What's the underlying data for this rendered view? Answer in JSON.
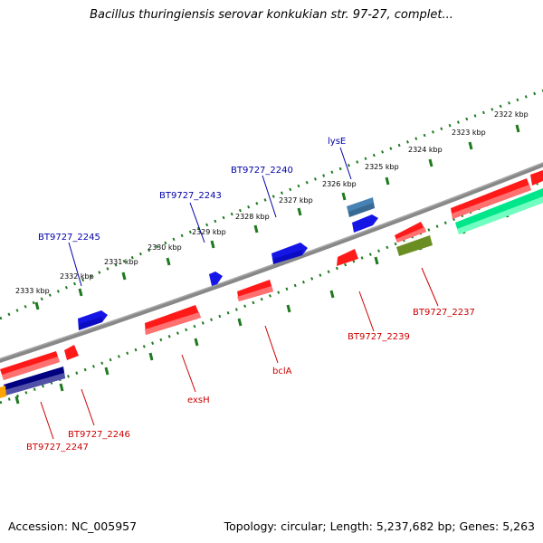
{
  "title": "Bacillus thuringiensis serovar konkukian str. 97-27, complet...",
  "footer": {
    "accession": "Accession: NC_005957",
    "summary": "Topology: circular; Length: 5,237,682 bp; Genes: 5,263"
  },
  "scale_ticks": [
    "2322 kbp",
    "2323 kbp",
    "2324 kbp",
    "2325 kbp",
    "2326 kbp",
    "2327 kbp",
    "2328 kbp",
    "2329 kbp",
    "2330 kbp",
    "2331 kbp",
    "2332 kbp",
    "2333 kbp"
  ],
  "gene_labels": {
    "lysE": "lysE",
    "bt2240": "BT9727_2240",
    "bt2243": "BT9727_2243",
    "bt2245": "BT9727_2245",
    "bt2237": "BT9727_2237",
    "bt2239": "BT9727_2239",
    "bclA": "bclA",
    "exsH": "exsH",
    "bt2246": "BT9727_2246",
    "bt2247": "BT9727_2247"
  },
  "colors": {
    "forward_label": "#0000aa",
    "reverse_label": "#cc0000",
    "backbone": "#888888",
    "ticks": "#1f7a1f",
    "red_gene": "#ff1a1a",
    "blue_gene": "#1515e6",
    "steel_gene": "#4682b4",
    "olive_gene": "#6b8e23",
    "navy_gene": "#000080",
    "green_gene": "#00e68a",
    "orange_gene": "#ffa500"
  }
}
